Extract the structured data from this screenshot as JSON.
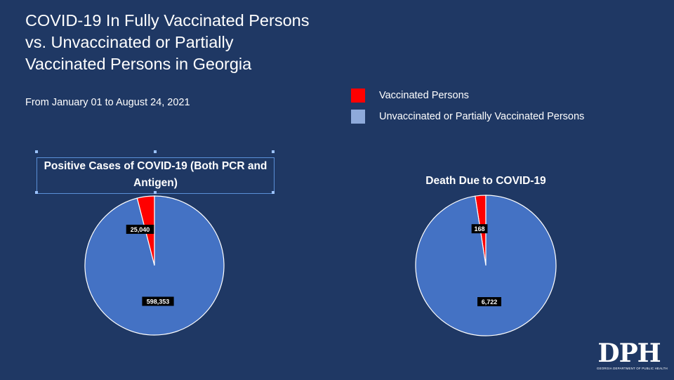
{
  "header": {
    "title_lines": [
      "COVID-19 In Fully Vaccinated Persons",
      "vs. Unvaccinated or Partially",
      "Vaccinated Persons in Georgia"
    ],
    "subtitle": "From January 01 to August 24, 2021"
  },
  "legend": {
    "items": [
      {
        "label": "Vaccinated Persons",
        "color": "#ff0000"
      },
      {
        "label": "Unvaccinated or Partially Vaccinated Persons",
        "color": "#8eaadb"
      }
    ]
  },
  "colors": {
    "background": "#1f3864",
    "vaccinated_slice": "#ff0000",
    "unvaccinated_slice": "#4472c4"
  },
  "logo": {
    "text": "DPH",
    "subtext": "GEORGIA DEPARTMENT OF PUBLIC HEALTH"
  },
  "chart_data": [
    {
      "type": "pie",
      "title": "Positive Cases of COVID-19 (Both PCR and Antigen)",
      "categories": [
        "Vaccinated Persons",
        "Unvaccinated or Partially Vaccinated Persons"
      ],
      "values": [
        25040,
        598353
      ],
      "labels": [
        "25,040",
        "598,353"
      ]
    },
    {
      "type": "pie",
      "title": "Death Due to COVID-19",
      "categories": [
        "Vaccinated Persons",
        "Unvaccinated or Partially Vaccinated Persons"
      ],
      "values": [
        168,
        6722
      ],
      "labels": [
        "168",
        "6,722"
      ]
    }
  ]
}
